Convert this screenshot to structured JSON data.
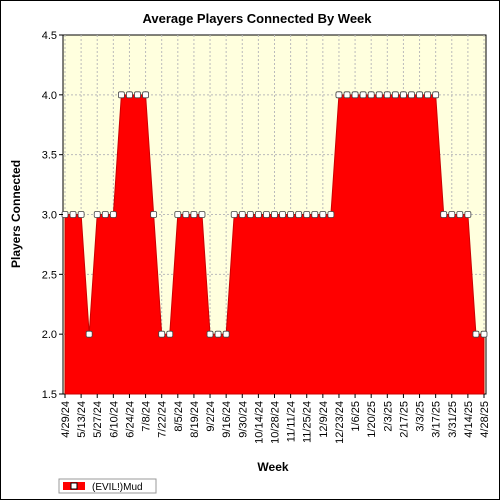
{
  "chart_data": {
    "type": "area",
    "title": "Average Players Connected By Week",
    "xlabel": "Week",
    "ylabel": "Players Connected",
    "ylim": [
      1.5,
      4.5
    ],
    "yticks": [
      "1.5",
      "2.0",
      "2.5",
      "3.0",
      "3.5",
      "4.0",
      "4.5"
    ],
    "xtick_labels": [
      "4/29/24",
      "5/13/24",
      "5/27/24",
      "6/10/24",
      "6/24/24",
      "7/8/24",
      "7/22/24",
      "8/5/24",
      "8/19/24",
      "9/2/24",
      "9/16/24",
      "9/30/24",
      "10/14/24",
      "10/28/24",
      "11/11/24",
      "11/25/24",
      "12/9/24",
      "12/23/24",
      "1/6/25",
      "1/20/25",
      "2/3/25",
      "2/17/25",
      "3/3/25",
      "3/17/25",
      "3/31/25",
      "4/14/25",
      "4/28/25"
    ],
    "x": [
      "4/29/24",
      "5/6/24",
      "5/13/24",
      "5/20/24",
      "5/27/24",
      "6/3/24",
      "6/10/24",
      "6/17/24",
      "6/24/24",
      "7/1/24",
      "7/8/24",
      "7/15/24",
      "7/22/24",
      "7/29/24",
      "8/5/24",
      "8/12/24",
      "8/19/24",
      "8/26/24",
      "9/2/24",
      "9/9/24",
      "9/16/24",
      "9/23/24",
      "9/30/24",
      "10/7/24",
      "10/14/24",
      "10/21/24",
      "10/28/24",
      "11/4/24",
      "11/11/24",
      "11/18/24",
      "11/25/24",
      "12/2/24",
      "12/9/24",
      "12/16/24",
      "12/23/24",
      "12/30/24",
      "1/6/25",
      "1/13/25",
      "1/20/25",
      "1/27/25",
      "2/3/25",
      "2/10/25",
      "2/17/25",
      "2/24/25",
      "3/3/25",
      "3/10/25",
      "3/17/25",
      "3/24/25",
      "3/31/25",
      "4/7/25",
      "4/14/25",
      "4/21/25",
      "4/28/25"
    ],
    "series": [
      {
        "name": "(EVIL!)Mud",
        "color": "#ff0000",
        "values": [
          3,
          3,
          3,
          2,
          3,
          3,
          3,
          4,
          4,
          4,
          4,
          3,
          2,
          2,
          3,
          3,
          3,
          3,
          2,
          2,
          2,
          3,
          3,
          3,
          3,
          3,
          3,
          3,
          3,
          3,
          3,
          3,
          3,
          3,
          4,
          4,
          4,
          4,
          4,
          4,
          4,
          4,
          4,
          4,
          4,
          4,
          4,
          3,
          3,
          3,
          3,
          2,
          2
        ]
      }
    ],
    "grid": true,
    "legend": "bottom-left",
    "plot_background": "#ffffde"
  }
}
